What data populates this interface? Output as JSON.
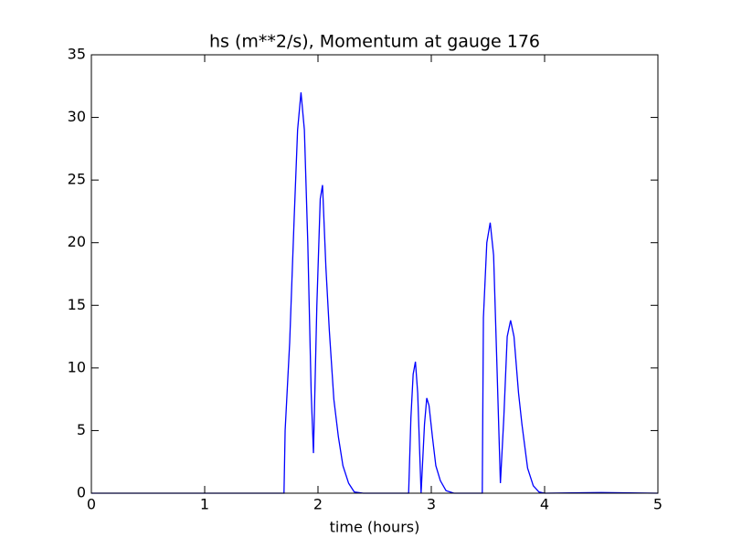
{
  "chart_data": {
    "type": "line",
    "title": "hs (m**2/s), Momentum at gauge 176",
    "xlabel": "time (hours)",
    "x": [
      0,
      1.7,
      1.71,
      1.75,
      1.79,
      1.82,
      1.85,
      1.88,
      1.91,
      1.94,
      1.96,
      1.99,
      2.02,
      2.04,
      2.07,
      2.1,
      2.14,
      2.18,
      2.22,
      2.27,
      2.32,
      2.4,
      2.8,
      2.82,
      2.84,
      2.86,
      2.88,
      2.91,
      2.94,
      2.96,
      2.98,
      3.01,
      3.04,
      3.08,
      3.13,
      3.2,
      3.45,
      3.46,
      3.49,
      3.52,
      3.55,
      3.58,
      3.61,
      3.64,
      3.67,
      3.7,
      3.73,
      3.77,
      3.8,
      3.85,
      3.9,
      3.95,
      4.0,
      4.5,
      5.0
    ],
    "series": [
      {
        "color": "#0000ff",
        "values": [
          0,
          0,
          5,
          12,
          22,
          29,
          32,
          29,
          20,
          8,
          3.2,
          15,
          23.5,
          24.6,
          18,
          13,
          7.5,
          4.5,
          2.2,
          0.8,
          0.1,
          0,
          0,
          6,
          9.5,
          10.5,
          8,
          0,
          5.5,
          7.6,
          7,
          4.5,
          2.2,
          1,
          0.2,
          0,
          0,
          14,
          20,
          21.6,
          19,
          10,
          0.8,
          6,
          12.5,
          13.8,
          12.5,
          8,
          5.5,
          2,
          0.6,
          0.1,
          0,
          0.05,
          0
        ]
      }
    ],
    "reference_line": {
      "y": 0,
      "color": "#000000",
      "dashed": true
    },
    "xlim": [
      0,
      5
    ],
    "ylim": [
      0,
      35
    ],
    "xticks": [
      0,
      1,
      2,
      3,
      4,
      5
    ],
    "yticks": [
      0,
      5,
      10,
      15,
      20,
      25,
      30,
      35
    ],
    "grid": false
  }
}
